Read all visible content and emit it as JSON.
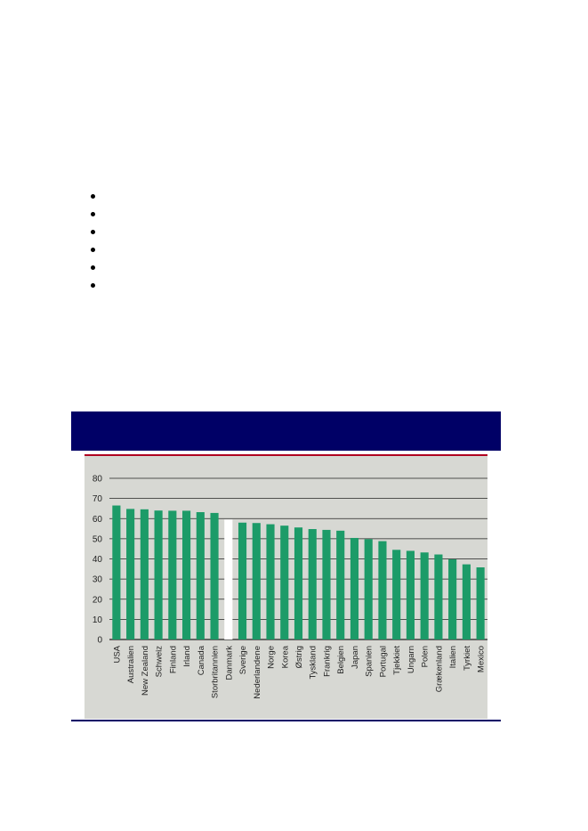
{
  "bullets": [
    "",
    "",
    "",
    "",
    "",
    ""
  ],
  "colors": {
    "banner": "#000066",
    "panel": "#d7d8d3",
    "redline": "#b00020",
    "bar": "#1c9b68",
    "highlight": "#ffffff",
    "grid": "#222222"
  },
  "chart_data": {
    "type": "bar",
    "categories": [
      "USA",
      "Australien",
      "New Zealand",
      "Schweiz",
      "Finland",
      "Irland",
      "Canada",
      "Storbritannien",
      "Danmark",
      "Sverige",
      "Nederlandene",
      "Norge",
      "Korea",
      "Østrig",
      "Tyskland",
      "Frankrig",
      "Belgien",
      "Japan",
      "Spanien",
      "Portugal",
      "Tjekkiet",
      "Ungarn",
      "Polen",
      "Grækenland",
      "Italien",
      "Tyrkiet",
      "Mexico"
    ],
    "values": [
      66.5,
      64.8,
      64.6,
      64.0,
      63.9,
      63.9,
      63.2,
      62.8,
      59.5,
      58.0,
      57.8,
      57.2,
      56.5,
      55.6,
      54.8,
      54.4,
      54.0,
      50.4,
      49.8,
      48.8,
      44.5,
      44.0,
      43.2,
      42.2,
      39.8,
      37.3,
      35.8
    ],
    "highlight": "Danmark",
    "yticks": [
      0,
      10,
      20,
      30,
      40,
      50,
      60,
      70,
      80
    ],
    "ylim": [
      0,
      80
    ],
    "grid": true,
    "title": "",
    "xlabel": "",
    "ylabel": ""
  }
}
